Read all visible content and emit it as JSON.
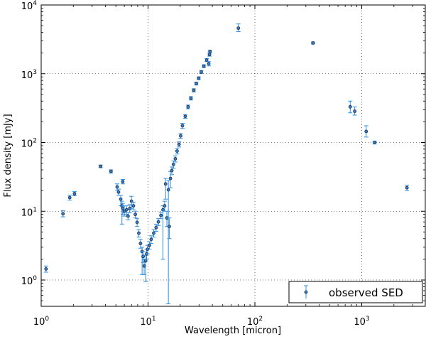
{
  "chart_data": {
    "type": "scatter",
    "xscale": "log",
    "yscale": "log",
    "xlabel": "Wavelength [micron]",
    "ylabel": "Flux density [mJy]",
    "xlim": [
      1,
      3900
    ],
    "ylim": [
      0.42,
      10000
    ],
    "grid": true,
    "legend": {
      "label": "observed SED",
      "placement": "bottom-right"
    },
    "x_ticks": [
      {
        "base": "10",
        "exp": "0",
        "value": 1
      },
      {
        "base": "10",
        "exp": "1",
        "value": 10
      },
      {
        "base": "10",
        "exp": "2",
        "value": 100
      },
      {
        "base": "10",
        "exp": "3",
        "value": 1000
      }
    ],
    "y_ticks": [
      {
        "base": "10",
        "exp": "0",
        "value": 1
      },
      {
        "base": "10",
        "exp": "1",
        "value": 10
      },
      {
        "base": "10",
        "exp": "2",
        "value": 100
      },
      {
        "base": "10",
        "exp": "3",
        "value": 1000
      },
      {
        "base": "10",
        "exp": "4",
        "value": 10000
      }
    ],
    "colors": {
      "marker_fill": "#3b7dc4",
      "marker_edge": "#1a2a40",
      "errorbar": "#2f8fe0"
    },
    "series": [
      {
        "name": "observed SED",
        "points": [
          {
            "x": 1.11,
            "y": 1.45,
            "lo": 1.3,
            "hi": 1.6
          },
          {
            "x": 1.6,
            "y": 9.2,
            "lo": 8.3,
            "hi": 10.2
          },
          {
            "x": 1.85,
            "y": 15.8,
            "lo": 14.5,
            "hi": 17.2
          },
          {
            "x": 2.05,
            "y": 18,
            "lo": 16.8,
            "hi": 19.3
          },
          {
            "x": 3.6,
            "y": 45,
            "lo": 43,
            "hi": 47
          },
          {
            "x": 4.5,
            "y": 38,
            "lo": 36,
            "hi": 40
          },
          {
            "x": 5.8,
            "y": 27,
            "lo": 25,
            "hi": 29
          },
          {
            "x": 5.14,
            "y": 22.6,
            "lo": 20,
            "hi": 25
          },
          {
            "x": 5.3,
            "y": 19,
            "lo": 17,
            "hi": 21
          },
          {
            "x": 5.55,
            "y": 15,
            "lo": 12,
            "hi": 17
          },
          {
            "x": 5.7,
            "y": 12,
            "lo": 6.5,
            "hi": 14
          },
          {
            "x": 5.8,
            "y": 11,
            "lo": 9,
            "hi": 13
          },
          {
            "x": 6.0,
            "y": 10,
            "lo": 8.5,
            "hi": 12
          },
          {
            "x": 6.3,
            "y": 10.5,
            "lo": 9,
            "hi": 12
          },
          {
            "x": 6.5,
            "y": 8.5,
            "lo": 7.5,
            "hi": 9.5
          },
          {
            "x": 6.75,
            "y": 11,
            "lo": 9.5,
            "hi": 12.5
          },
          {
            "x": 7.0,
            "y": 14,
            "lo": 11,
            "hi": 16.5
          },
          {
            "x": 7.3,
            "y": 12,
            "lo": 10.5,
            "hi": 13.5
          },
          {
            "x": 7.6,
            "y": 9,
            "lo": 8,
            "hi": 10
          },
          {
            "x": 7.9,
            "y": 6.9,
            "lo": 6,
            "hi": 7.8
          },
          {
            "x": 8.2,
            "y": 4.8,
            "lo": 4.2,
            "hi": 5.4
          },
          {
            "x": 8.5,
            "y": 3.4,
            "lo": 2.9,
            "hi": 3.9
          },
          {
            "x": 8.8,
            "y": 2.6,
            "lo": 1.2,
            "hi": 3.0
          },
          {
            "x": 9.0,
            "y": 2.2,
            "lo": 1.8,
            "hi": 2.6
          },
          {
            "x": 9.2,
            "y": 1.6,
            "lo": 1.2,
            "hi": 2.0
          },
          {
            "x": 9.5,
            "y": 1.9,
            "lo": 0.95,
            "hi": 2.3
          },
          {
            "x": 9.7,
            "y": 2.4,
            "lo": 2.0,
            "hi": 2.8
          },
          {
            "x": 9.9,
            "y": 2.8,
            "lo": 2.4,
            "hi": 3.2
          },
          {
            "x": 10.3,
            "y": 3.2,
            "lo": 2.8,
            "hi": 3.6
          },
          {
            "x": 10.7,
            "y": 3.9,
            "lo": 3.4,
            "hi": 4.4
          },
          {
            "x": 11.3,
            "y": 4.8,
            "lo": 4.2,
            "hi": 5.4
          },
          {
            "x": 11.9,
            "y": 5.8,
            "lo": 5.1,
            "hi": 6.5
          },
          {
            "x": 12.5,
            "y": 7.0,
            "lo": 6.2,
            "hi": 7.8
          },
          {
            "x": 13.2,
            "y": 8.7,
            "lo": 7.8,
            "hi": 9.6
          },
          {
            "x": 13.8,
            "y": 10.5,
            "lo": 2.0,
            "hi": 12
          },
          {
            "x": 14.3,
            "y": 12,
            "lo": 10,
            "hi": 14
          },
          {
            "x": 14.6,
            "y": 25,
            "lo": 15,
            "hi": 30
          },
          {
            "x": 15.0,
            "y": 8,
            "lo": 6,
            "hi": 10
          },
          {
            "x": 15.5,
            "y": 20.5,
            "lo": 0.45,
            "hi": 28
          },
          {
            "x": 15.8,
            "y": 6,
            "lo": 4,
            "hi": 8
          },
          {
            "x": 16.2,
            "y": 30,
            "lo": 22,
            "hi": 38
          },
          {
            "x": 16.7,
            "y": 39,
            "lo": 34,
            "hi": 44
          },
          {
            "x": 17.3,
            "y": 48,
            "lo": 42,
            "hi": 54
          },
          {
            "x": 18.0,
            "y": 58,
            "lo": 52,
            "hi": 64
          },
          {
            "x": 18.7,
            "y": 75,
            "lo": 68,
            "hi": 82
          },
          {
            "x": 19.5,
            "y": 94,
            "lo": 86,
            "hi": 102
          },
          {
            "x": 20.2,
            "y": 125,
            "lo": 115,
            "hi": 135
          },
          {
            "x": 21.0,
            "y": 175,
            "lo": 160,
            "hi": 190
          },
          {
            "x": 22.3,
            "y": 240,
            "lo": 225,
            "hi": 255
          },
          {
            "x": 23.7,
            "y": 330,
            "lo": 310,
            "hi": 350
          },
          {
            "x": 25.2,
            "y": 440,
            "lo": 415,
            "hi": 465
          },
          {
            "x": 26.8,
            "y": 575,
            "lo": 545,
            "hi": 605
          },
          {
            "x": 28.3,
            "y": 720,
            "lo": 685,
            "hi": 755
          },
          {
            "x": 29.8,
            "y": 860,
            "lo": 820,
            "hi": 900
          },
          {
            "x": 31.5,
            "y": 1060,
            "lo": 1010,
            "hi": 1110
          },
          {
            "x": 33.3,
            "y": 1290,
            "lo": 1230,
            "hi": 1350
          },
          {
            "x": 35.4,
            "y": 1580,
            "lo": 1500,
            "hi": 1660
          },
          {
            "x": 37.0,
            "y": 1400,
            "lo": 1300,
            "hi": 1500
          },
          {
            "x": 37.6,
            "y": 1900,
            "lo": 1800,
            "hi": 2000
          },
          {
            "x": 38.0,
            "y": 2100,
            "lo": 2000,
            "hi": 2200
          },
          {
            "x": 70,
            "y": 4600,
            "lo": 4100,
            "hi": 5300
          },
          {
            "x": 350,
            "y": 2800,
            "lo": 2700,
            "hi": 2900
          },
          {
            "x": 780,
            "y": 330,
            "lo": 270,
            "hi": 400
          },
          {
            "x": 860,
            "y": 285,
            "lo": 250,
            "hi": 330
          },
          {
            "x": 1100,
            "y": 145,
            "lo": 120,
            "hi": 175
          },
          {
            "x": 1320,
            "y": 100,
            "lo": 95,
            "hi": 105
          },
          {
            "x": 2650,
            "y": 22,
            "lo": 20,
            "hi": 24
          }
        ]
      }
    ]
  }
}
